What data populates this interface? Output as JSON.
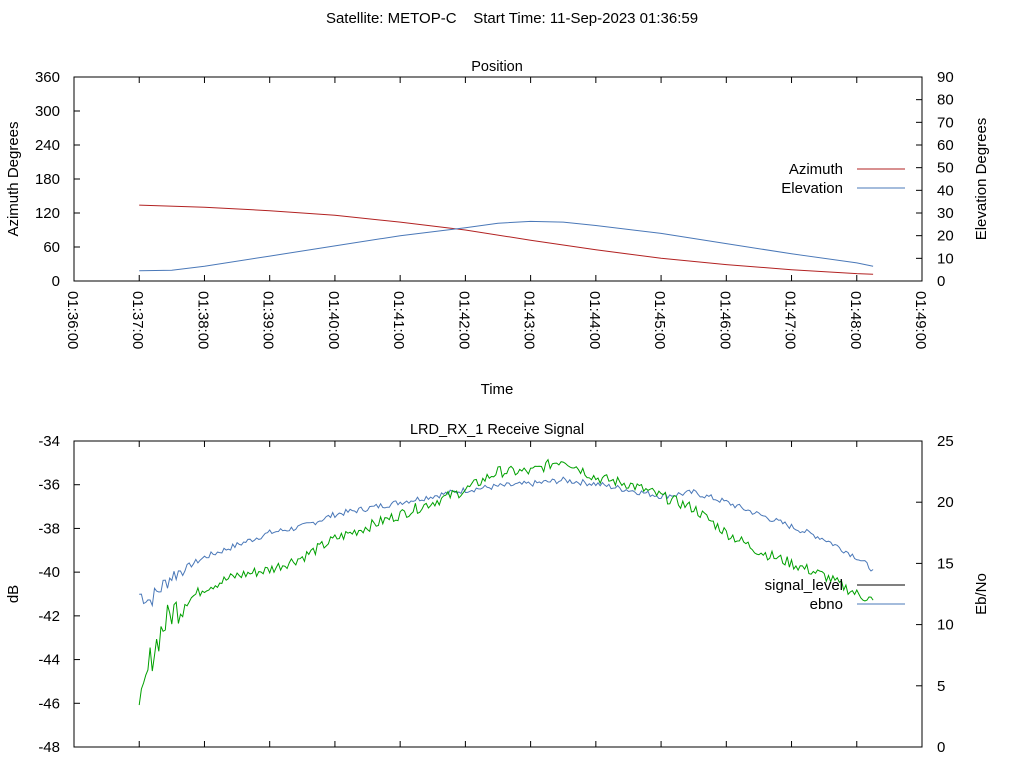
{
  "page_title": "Satellite: METOP-C    Start Time: 11-Sep-2023 01:36:59",
  "chart_data": [
    {
      "type": "line",
      "title": "Position",
      "xlabel": "Time",
      "ylabel": "Azimuth Degrees",
      "y2label": "Elevation Degrees",
      "ylim": [
        0,
        360
      ],
      "y2lim": [
        0,
        90
      ],
      "x_ticks": [
        "01:36:00",
        "01:37:00",
        "01:38:00",
        "01:39:00",
        "01:40:00",
        "01:41:00",
        "01:42:00",
        "01:43:00",
        "01:44:00",
        "01:45:00",
        "01:46:00",
        "01:47:00",
        "01:48:00",
        "01:49:00"
      ],
      "y_ticks": [
        "0",
        "60",
        "120",
        "180",
        "240",
        "300",
        "360"
      ],
      "y2_ticks": [
        "0",
        "10",
        "20",
        "30",
        "40",
        "50",
        "60",
        "70",
        "80",
        "90"
      ],
      "legend_position": "right",
      "series": [
        {
          "name": "Azimuth",
          "axis": "y",
          "color": "#b22222",
          "x": [
            "01:37:00",
            "01:38:00",
            "01:39:00",
            "01:40:00",
            "01:41:00",
            "01:42:00",
            "01:43:00",
            "01:44:00",
            "01:45:00",
            "01:46:00",
            "01:47:00",
            "01:48:00",
            "01:48:15"
          ],
          "values": [
            134,
            130,
            124,
            116,
            104,
            90,
            72,
            55,
            40,
            29,
            20,
            13,
            12
          ]
        },
        {
          "name": "Elevation",
          "axis": "y2",
          "color": "#4a78b8",
          "x": [
            "01:37:00",
            "01:37:30",
            "01:38:00",
            "01:39:00",
            "01:40:00",
            "01:41:00",
            "01:42:00",
            "01:42:30",
            "01:43:00",
            "01:43:30",
            "01:44:00",
            "01:45:00",
            "01:46:00",
            "01:47:00",
            "01:48:00",
            "01:48:15"
          ],
          "values": [
            4.5,
            4.7,
            6.5,
            11,
            15.5,
            20,
            23.5,
            25.5,
            26.3,
            26,
            24.5,
            21,
            16.5,
            12,
            8,
            6.5
          ]
        }
      ]
    },
    {
      "type": "line",
      "title": "LRD_RX_1 Receive Signal",
      "ylabel": "dB",
      "y2label": "Eb/No",
      "ylim": [
        -48,
        -34
      ],
      "y2lim": [
        0,
        25
      ],
      "y_ticks": [
        "-34",
        "-36",
        "-38",
        "-40",
        "-42",
        "-44",
        "-46",
        "-48"
      ],
      "y2_ticks": [
        "0",
        "5",
        "10",
        "15",
        "20",
        "25"
      ],
      "legend_position": "right",
      "series": [
        {
          "name": "signal_level",
          "axis": "y",
          "color": "#000000",
          "x": [],
          "values": []
        },
        {
          "name": "ebno",
          "axis": "y2",
          "color": "#4a78b8",
          "x": [
            "01:37:00",
            "01:37:10",
            "01:37:20",
            "01:37:30",
            "01:38:00",
            "01:38:30",
            "01:39:00",
            "01:39:30",
            "01:40:00",
            "01:40:30",
            "01:41:00",
            "01:41:30",
            "01:42:00",
            "01:42:30",
            "01:43:00",
            "01:43:30",
            "01:44:00",
            "01:44:30",
            "01:45:00",
            "01:45:30",
            "01:46:00",
            "01:46:30",
            "01:47:00",
            "01:47:30",
            "01:48:00",
            "01:48:15"
          ],
          "values": [
            12.5,
            12.0,
            13.0,
            14.0,
            15.5,
            16.5,
            17.5,
            18.0,
            19.0,
            19.5,
            20.0,
            20.5,
            21.0,
            21.3,
            21.5,
            21.8,
            21.5,
            21.0,
            20.5,
            20.8,
            20.0,
            19.0,
            18.0,
            17.0,
            15.5,
            14.5
          ]
        },
        {
          "name": "",
          "axis": "y2",
          "color": "#00a000",
          "x": [
            "01:37:00",
            "01:37:10",
            "01:37:20",
            "01:37:30",
            "01:38:00",
            "01:38:30",
            "01:39:00",
            "01:39:30",
            "01:40:00",
            "01:40:30",
            "01:41:00",
            "01:41:30",
            "01:42:00",
            "01:42:30",
            "01:43:00",
            "01:43:30",
            "01:44:00",
            "01:44:30",
            "01:45:00",
            "01:45:30",
            "01:46:00",
            "01:46:30",
            "01:47:00",
            "01:47:30",
            "01:48:00",
            "01:48:15"
          ],
          "values": [
            2.5,
            7.0,
            9.5,
            11.0,
            13.0,
            14.0,
            14.5,
            15.5,
            17.0,
            18.0,
            19.0,
            20.0,
            21.0,
            22.5,
            22.5,
            23.5,
            22.0,
            21.5,
            20.5,
            19.5,
            17.5,
            16.0,
            15.0,
            14.0,
            12.5,
            12.0
          ]
        }
      ]
    }
  ]
}
